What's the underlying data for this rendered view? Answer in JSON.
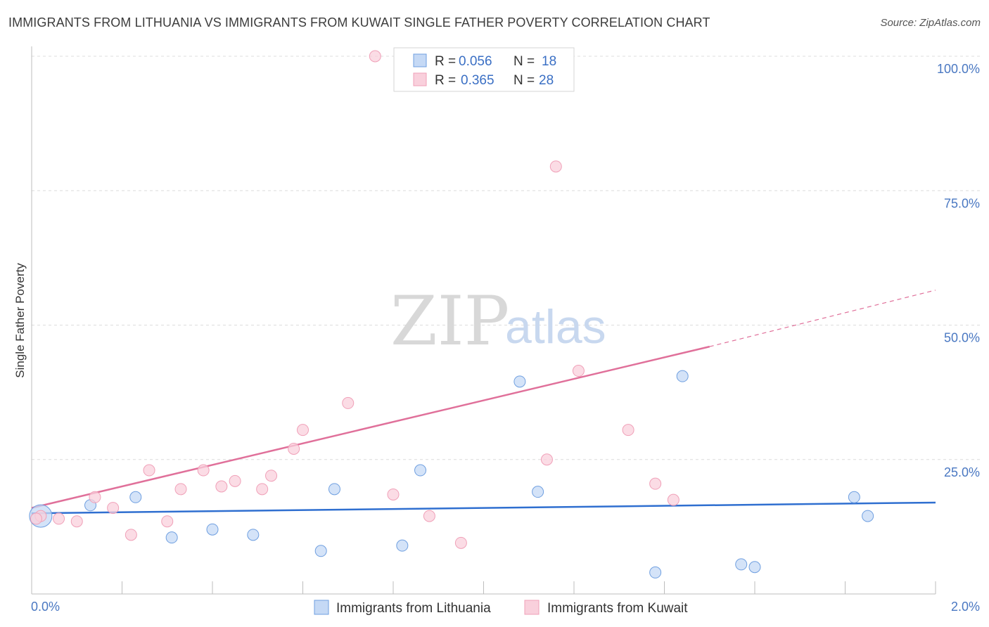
{
  "title": "IMMIGRANTS FROM LITHUANIA VS IMMIGRANTS FROM KUWAIT SINGLE FATHER POVERTY CORRELATION CHART",
  "source": "Source: ZipAtlas.com",
  "watermark": {
    "zip": "ZIP",
    "atlas": "atlas"
  },
  "chart_data": {
    "type": "scatter",
    "title": "IMMIGRANTS FROM LITHUANIA VS IMMIGRANTS FROM KUWAIT SINGLE FATHER POVERTY CORRELATION CHART",
    "ylabel": "Single Father Poverty",
    "xlabel": "",
    "xlim": [
      0,
      2.0
    ],
    "ylim": [
      0,
      100
    ],
    "x_tick_labels": [
      "0.0%",
      "2.0%"
    ],
    "y_ticks": [
      25,
      50,
      75,
      100
    ],
    "y_tick_labels": [
      "25.0%",
      "50.0%",
      "75.0%",
      "100.0%"
    ],
    "legend": [
      {
        "r_label": "R = ",
        "r": "0.056",
        "n_label": "N = ",
        "n": "18"
      },
      {
        "r_label": "R = ",
        "r": "0.365",
        "n_label": "N = ",
        "n": "28"
      }
    ],
    "series": [
      {
        "name": "Immigrants from Lithuania",
        "color": "#6f9fe0",
        "fill": "#c5d9f5",
        "points": [
          [
            0.02,
            14.5
          ],
          [
            0.13,
            16.5
          ],
          [
            0.23,
            18.0
          ],
          [
            0.31,
            10.5
          ],
          [
            0.4,
            12.0
          ],
          [
            0.49,
            11.0
          ],
          [
            0.64,
            8.0
          ],
          [
            0.67,
            19.5
          ],
          [
            0.82,
            9.0
          ],
          [
            0.86,
            23.0
          ],
          [
            1.08,
            39.5
          ],
          [
            1.12,
            19.0
          ],
          [
            1.38,
            4.0
          ],
          [
            1.44,
            40.5
          ],
          [
            1.57,
            5.5
          ],
          [
            1.6,
            5.0
          ],
          [
            1.82,
            18.0
          ],
          [
            1.85,
            14.5
          ]
        ],
        "trend": {
          "x0": 0.0,
          "y0": 15.0,
          "x1": 2.0,
          "y1": 17.0,
          "color": "#2f6fd0"
        }
      },
      {
        "name": "Immigrants from Kuwait",
        "color": "#f0a0b8",
        "fill": "#f9d0dc",
        "points": [
          [
            0.02,
            14.5
          ],
          [
            0.06,
            14.0
          ],
          [
            0.1,
            13.5
          ],
          [
            0.14,
            18.0
          ],
          [
            0.18,
            16.0
          ],
          [
            0.22,
            11.0
          ],
          [
            0.26,
            23.0
          ],
          [
            0.3,
            13.5
          ],
          [
            0.33,
            19.5
          ],
          [
            0.38,
            23.0
          ],
          [
            0.42,
            20.0
          ],
          [
            0.45,
            21.0
          ],
          [
            0.51,
            19.5
          ],
          [
            0.53,
            22.0
          ],
          [
            0.58,
            27.0
          ],
          [
            0.6,
            30.5
          ],
          [
            0.7,
            35.5
          ],
          [
            0.76,
            100.0
          ],
          [
            0.8,
            18.5
          ],
          [
            0.88,
            14.5
          ],
          [
            0.95,
            9.5
          ],
          [
            1.14,
            25.0
          ],
          [
            1.16,
            79.5
          ],
          [
            1.21,
            41.5
          ],
          [
            1.32,
            30.5
          ],
          [
            1.38,
            20.5
          ],
          [
            1.42,
            17.5
          ],
          [
            0.01,
            14.0
          ]
        ],
        "trend": {
          "x0": 0.0,
          "y0": 16.0,
          "x1": 1.5,
          "y1": 46.0,
          "x_ext": 2.0,
          "y_ext": 56.5,
          "color": "#e0709a"
        }
      }
    ]
  }
}
